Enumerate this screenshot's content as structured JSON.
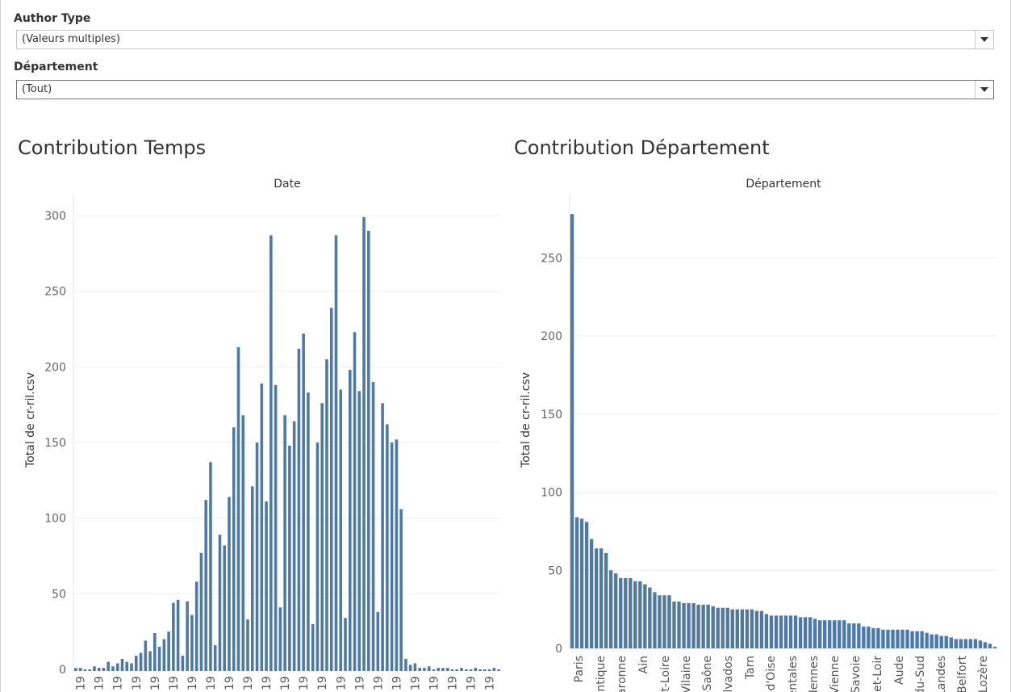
{
  "filters": [
    {
      "label": "Author Type",
      "value": "(Valeurs multiples)"
    },
    {
      "label": "Département",
      "value": "(Tout)"
    }
  ],
  "colors": {
    "bar": "#4e79a7",
    "grid": "#efefef",
    "axis_text": "#666666"
  },
  "chart_data": [
    {
      "type": "bar",
      "title": "Contribution Temps",
      "xlabel": "Date",
      "ylabel": "Total de cr-ril.csv",
      "ylim": [
        0,
        310
      ],
      "yticks": [
        0,
        50,
        100,
        150,
        200,
        250,
        300
      ],
      "grid": true,
      "tick_label": "19",
      "values": [
        1,
        1,
        0,
        0,
        2,
        1,
        1,
        5,
        2,
        4,
        7,
        5,
        4,
        9,
        11,
        19,
        12,
        24,
        15,
        20,
        25,
        44,
        46,
        9,
        45,
        36,
        58,
        77,
        112,
        137,
        16,
        89,
        82,
        114,
        160,
        213,
        168,
        33,
        121,
        150,
        189,
        111,
        287,
        188,
        41,
        168,
        148,
        164,
        212,
        222,
        183,
        30,
        150,
        176,
        205,
        239,
        287,
        185,
        34,
        198,
        223,
        184,
        299,
        290,
        190,
        38,
        176,
        162,
        150,
        152,
        106,
        7,
        3,
        4,
        1,
        1,
        2,
        0,
        1,
        1,
        1,
        0,
        0,
        1,
        0,
        0,
        1,
        0,
        0,
        0,
        1,
        0
      ]
    },
    {
      "type": "bar",
      "title": "Contribution Département",
      "xlabel": "Département",
      "ylabel": "Total de cr-ril.csv",
      "ylim": [
        0,
        280
      ],
      "yticks": [
        0,
        50,
        100,
        150,
        200,
        250
      ],
      "grid": true,
      "category_labels": [
        "Paris",
        "ntique",
        "aronne",
        "Ain",
        "et-Loire",
        "Vilaine",
        "-Saône",
        "lvados",
        "Tarn",
        "-d'Oise",
        "entales",
        "dennes",
        "Vienne",
        "Savoie",
        "et-Loir",
        "Aude",
        "du-Sud",
        "Landes",
        "Belfort",
        "Lozère"
      ],
      "values": [
        278,
        84,
        83,
        81,
        70,
        64,
        64,
        61,
        50,
        48,
        45,
        45,
        45,
        43,
        43,
        41,
        39,
        36,
        34,
        34,
        34,
        30,
        30,
        29,
        29,
        29,
        28,
        28,
        28,
        27,
        26,
        26,
        26,
        25,
        25,
        25,
        25,
        25,
        24,
        24,
        22,
        21,
        21,
        21,
        21,
        21,
        21,
        20,
        20,
        20,
        19,
        18,
        18,
        18,
        18,
        18,
        18,
        16,
        16,
        16,
        14,
        14,
        13,
        13,
        12,
        12,
        12,
        12,
        12,
        12,
        11,
        11,
        11,
        10,
        9,
        9,
        8,
        8,
        7,
        6,
        6,
        6,
        6,
        6,
        5,
        4,
        3,
        1
      ]
    }
  ]
}
